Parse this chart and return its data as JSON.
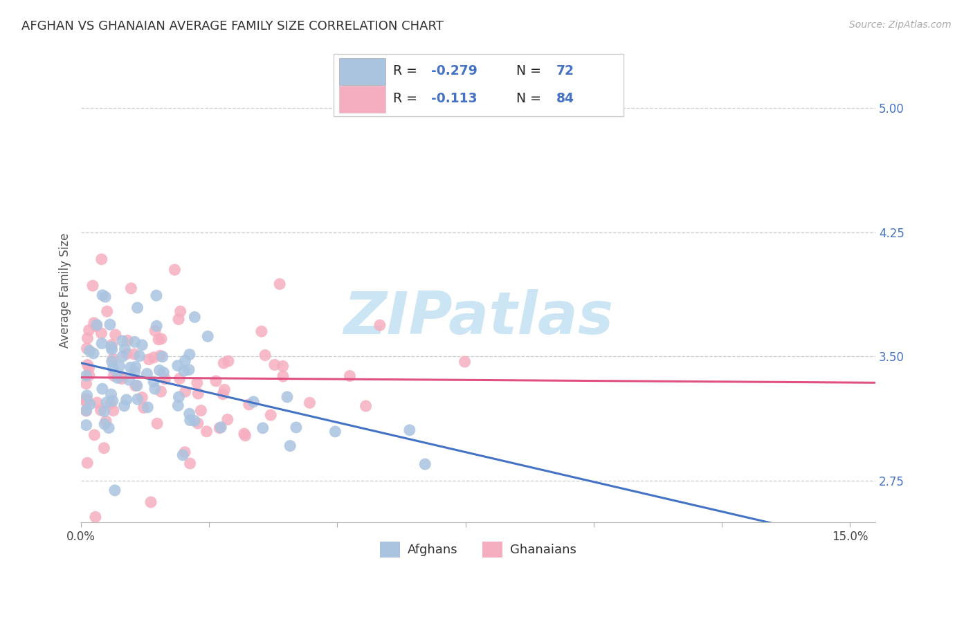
{
  "title": "AFGHAN VS GHANAIAN AVERAGE FAMILY SIZE CORRELATION CHART",
  "source": "Source: ZipAtlas.com",
  "ylabel": "Average Family Size",
  "ytick_labels": [
    "2.75",
    "3.50",
    "4.25",
    "5.00"
  ],
  "ytick_vals": [
    2.75,
    3.5,
    4.25,
    5.0
  ],
  "xlim": [
    0.0,
    0.155
  ],
  "ylim": [
    2.5,
    5.3
  ],
  "afghan_R": -0.279,
  "afghan_N": 72,
  "ghanaian_R": -0.113,
  "ghanaian_N": 84,
  "afghan_dot_color": "#aac4e0",
  "ghanaian_dot_color": "#f5aec0",
  "afghan_line_color": "#4472c4",
  "ghanaian_line_color": "#e05080",
  "label_blue_color": "#4472c4",
  "watermark_color": "#cce5f5",
  "background_color": "#ffffff",
  "grid_color": "#cccccc",
  "title_color": "#333333",
  "source_color": "#aaaaaa",
  "legend_text_dark": "#222222",
  "bottom_legend_labels": [
    "Afghans",
    "Ghanaians"
  ]
}
